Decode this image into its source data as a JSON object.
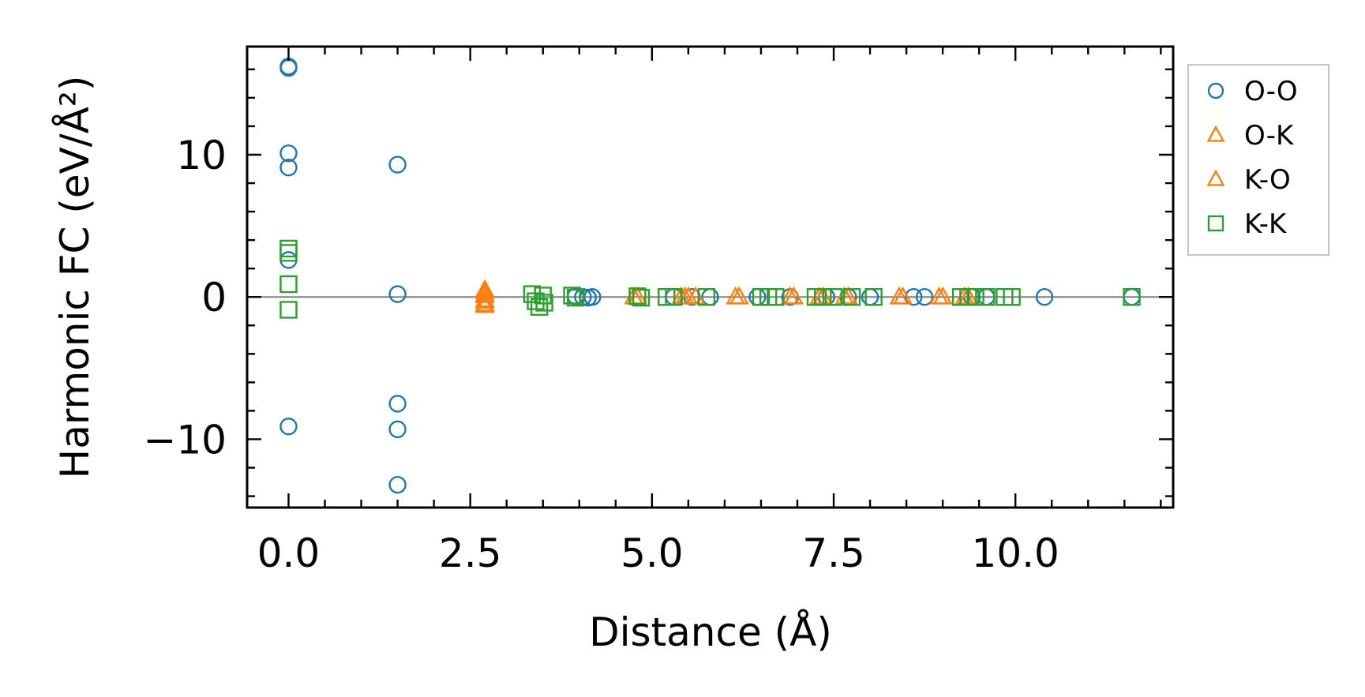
{
  "chart_data": {
    "type": "scatter",
    "title": "",
    "xlabel": "Distance (Å)",
    "ylabel": "Harmonic FC (eV/Å²)",
    "xlim": [
      -0.57,
      12.17
    ],
    "ylim": [
      -14.8,
      17.6
    ],
    "x_ticks": [
      0.0,
      2.5,
      5.0,
      7.5,
      10.0
    ],
    "x_tick_labels": [
      "0.0",
      "2.5",
      "5.0",
      "7.5",
      "10.0"
    ],
    "y_ticks": [
      -10,
      0,
      10
    ],
    "y_tick_labels": [
      "−10",
      "0",
      "10"
    ],
    "zero_line": true,
    "grid": false,
    "legend_position": "outside right, top",
    "series": [
      {
        "name": "O-O",
        "marker": "circle",
        "color": "#1f77b4",
        "points": [
          [
            0.0,
            16.2
          ],
          [
            0.0,
            16.1
          ],
          [
            0.0,
            10.1
          ],
          [
            0.0,
            9.1
          ],
          [
            0.0,
            2.6
          ],
          [
            0.0,
            -9.1
          ],
          [
            1.5,
            9.3
          ],
          [
            1.5,
            0.2
          ],
          [
            1.5,
            -7.5
          ],
          [
            1.5,
            -9.3
          ],
          [
            1.5,
            -13.2
          ],
          [
            3.95,
            0.05
          ],
          [
            4.05,
            0.0
          ],
          [
            4.12,
            -0.05
          ],
          [
            4.18,
            0.0
          ],
          [
            5.3,
            0.0
          ],
          [
            5.55,
            0.0
          ],
          [
            5.8,
            0.0
          ],
          [
            6.45,
            0.0
          ],
          [
            6.9,
            0.0
          ],
          [
            7.4,
            0.0
          ],
          [
            7.7,
            0.0
          ],
          [
            8.0,
            0.0
          ],
          [
            8.6,
            0.0
          ],
          [
            8.75,
            0.0
          ],
          [
            9.4,
            0.0
          ],
          [
            9.6,
            0.0
          ],
          [
            10.4,
            0.0
          ],
          [
            11.6,
            0.0
          ]
        ]
      },
      {
        "name": "O-K",
        "marker": "triangle",
        "color": "#ff7f0e",
        "points": [
          [
            2.7,
            0.5
          ],
          [
            2.7,
            0.2
          ],
          [
            2.7,
            -0.2
          ],
          [
            2.7,
            -0.5
          ],
          [
            4.8,
            0.0
          ],
          [
            5.45,
            0.0
          ],
          [
            5.5,
            0.0
          ],
          [
            6.15,
            0.0
          ],
          [
            6.9,
            0.0
          ],
          [
            7.3,
            0.0
          ],
          [
            7.65,
            0.0
          ],
          [
            8.4,
            0.0
          ],
          [
            8.95,
            0.0
          ],
          [
            9.3,
            0.0
          ]
        ]
      },
      {
        "name": "K-O",
        "marker": "triangle",
        "color": "#ff7f0e",
        "points": [
          [
            2.7,
            0.4
          ],
          [
            2.7,
            0.1
          ],
          [
            2.7,
            -0.3
          ],
          [
            2.7,
            -0.6
          ],
          [
            4.75,
            0.0
          ],
          [
            5.4,
            0.0
          ],
          [
            5.6,
            0.0
          ],
          [
            6.2,
            0.0
          ],
          [
            6.95,
            0.0
          ],
          [
            7.35,
            0.0
          ],
          [
            7.7,
            0.0
          ],
          [
            8.45,
            0.0
          ],
          [
            9.0,
            0.0
          ],
          [
            9.35,
            0.0
          ]
        ]
      },
      {
        "name": "K-K",
        "marker": "square",
        "color": "#2ca02c",
        "points": [
          [
            0.0,
            3.4
          ],
          [
            0.0,
            3.1
          ],
          [
            0.0,
            0.9
          ],
          [
            0.0,
            -0.9
          ],
          [
            3.35,
            0.2
          ],
          [
            3.4,
            -0.3
          ],
          [
            3.45,
            -0.7
          ],
          [
            3.5,
            0.1
          ],
          [
            3.52,
            -0.4
          ],
          [
            3.9,
            0.1
          ],
          [
            3.95,
            -0.05
          ],
          [
            4.8,
            0.05
          ],
          [
            4.85,
            -0.05
          ],
          [
            5.2,
            0.0
          ],
          [
            5.3,
            0.0
          ],
          [
            5.75,
            0.0
          ],
          [
            6.5,
            0.0
          ],
          [
            6.6,
            0.0
          ],
          [
            6.7,
            0.0
          ],
          [
            7.25,
            0.0
          ],
          [
            7.35,
            0.0
          ],
          [
            7.5,
            0.0
          ],
          [
            7.75,
            0.0
          ],
          [
            8.05,
            0.0
          ],
          [
            9.25,
            0.0
          ],
          [
            9.35,
            0.0
          ],
          [
            9.45,
            0.0
          ],
          [
            9.6,
            0.0
          ],
          [
            9.85,
            0.0
          ],
          [
            9.95,
            0.0
          ],
          [
            11.6,
            0.0
          ]
        ]
      }
    ]
  }
}
